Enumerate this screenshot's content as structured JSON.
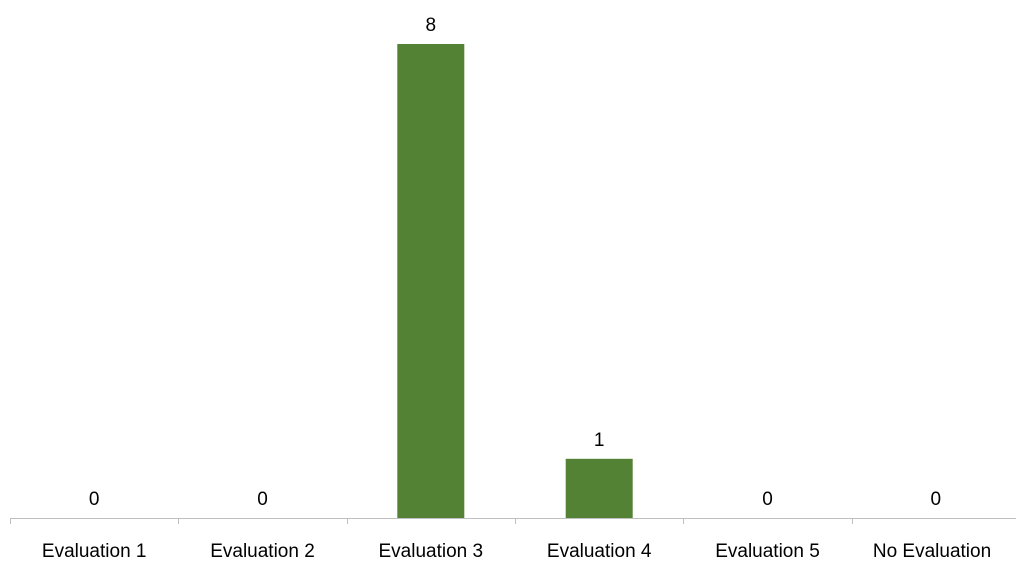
{
  "chart_data": {
    "type": "bar",
    "categories": [
      "Evaluation 1",
      "Evaluation 2",
      "Evaluation 3",
      "Evaluation 4",
      "Evaluation 5",
      "No Evaluation"
    ],
    "values": [
      0,
      0,
      8,
      1,
      0,
      0
    ],
    "title": "",
    "xlabel": "",
    "ylabel": "",
    "ylim": [
      0,
      8
    ],
    "grid": false,
    "legend": "none",
    "data_labels": true,
    "bar_color": "#548235",
    "axis_color": "#bfbfbf"
  }
}
